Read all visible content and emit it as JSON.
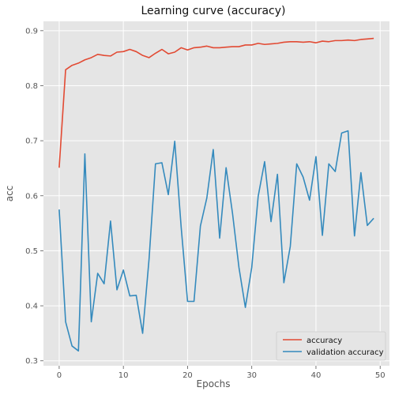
{
  "chart_data": {
    "type": "line",
    "title": "Learning curve (accuracy)",
    "xlabel": "Epochs",
    "ylabel": "acc",
    "xlim": [
      -2.45,
      51.45
    ],
    "ylim": [
      0.291,
      0.917
    ],
    "x_ticks": [
      0,
      10,
      20,
      30,
      40,
      50
    ],
    "y_ticks": [
      0.3,
      0.4,
      0.5,
      0.6,
      0.7,
      0.8,
      0.9
    ],
    "grid": true,
    "legend_position": "bottom-right",
    "x": [
      0,
      1,
      2,
      3,
      4,
      5,
      6,
      7,
      8,
      9,
      10,
      11,
      12,
      13,
      14,
      15,
      16,
      17,
      18,
      19,
      20,
      21,
      22,
      23,
      24,
      25,
      26,
      27,
      28,
      29,
      30,
      31,
      32,
      33,
      34,
      35,
      36,
      37,
      38,
      39,
      40,
      41,
      42,
      43,
      44,
      45,
      46,
      47,
      48,
      49
    ],
    "series": [
      {
        "name": "accuracy",
        "color": "#e24a33",
        "values": [
          0.651,
          0.829,
          0.837,
          0.841,
          0.847,
          0.851,
          0.857,
          0.855,
          0.854,
          0.861,
          0.862,
          0.866,
          0.862,
          0.855,
          0.851,
          0.859,
          0.866,
          0.858,
          0.861,
          0.869,
          0.865,
          0.869,
          0.87,
          0.872,
          0.869,
          0.869,
          0.87,
          0.871,
          0.871,
          0.874,
          0.874,
          0.877,
          0.875,
          0.876,
          0.877,
          0.879,
          0.88,
          0.88,
          0.879,
          0.88,
          0.878,
          0.881,
          0.88,
          0.882,
          0.882,
          0.883,
          0.882,
          0.884,
          0.885,
          0.886
        ]
      },
      {
        "name": "validation accuracy",
        "color": "#348abd",
        "values": [
          0.575,
          0.371,
          0.327,
          0.318,
          0.676,
          0.371,
          0.459,
          0.44,
          0.554,
          0.429,
          0.465,
          0.418,
          0.419,
          0.35,
          0.485,
          0.658,
          0.66,
          0.602,
          0.699,
          0.543,
          0.408,
          0.408,
          0.545,
          0.596,
          0.684,
          0.523,
          0.651,
          0.568,
          0.47,
          0.397,
          0.47,
          0.599,
          0.662,
          0.553,
          0.639,
          0.442,
          0.508,
          0.658,
          0.634,
          0.592,
          0.671,
          0.528,
          0.658,
          0.644,
          0.714,
          0.718,
          0.527,
          0.642,
          0.546,
          0.559
        ]
      }
    ]
  }
}
